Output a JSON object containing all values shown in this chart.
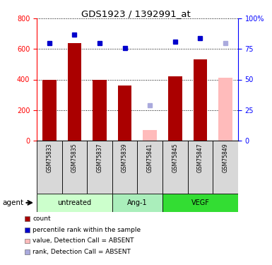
{
  "title": "GDS1923 / 1392991_at",
  "samples": [
    "GSM75833",
    "GSM75835",
    "GSM75837",
    "GSM75839",
    "GSM75841",
    "GSM75845",
    "GSM75847",
    "GSM75849"
  ],
  "count_values": [
    400,
    640,
    400,
    360,
    null,
    420,
    530,
    null
  ],
  "count_absent": [
    null,
    null,
    null,
    null,
    70,
    null,
    null,
    410
  ],
  "rank_values": [
    80,
    87,
    80,
    76,
    null,
    81,
    84,
    null
  ],
  "rank_absent": [
    null,
    null,
    null,
    null,
    29,
    null,
    null,
    80
  ],
  "groups": [
    {
      "label": "untreated",
      "start": 0,
      "end": 3,
      "color": "#ccffcc"
    },
    {
      "label": "Ang-1",
      "start": 3,
      "end": 5,
      "color": "#aaeebb"
    },
    {
      "label": "VEGF",
      "start": 5,
      "end": 8,
      "color": "#33dd33"
    }
  ],
  "ylim_left": [
    0,
    800
  ],
  "ylim_right": [
    0,
    100
  ],
  "yticks_left": [
    0,
    200,
    400,
    600,
    800
  ],
  "yticks_right": [
    0,
    25,
    50,
    75,
    100
  ],
  "ytick_labels_right": [
    "0",
    "25",
    "50",
    "75",
    "100%"
  ],
  "bar_color": "#aa0000",
  "bar_absent_color": "#ffbbbb",
  "rank_color": "#0000cc",
  "rank_absent_color": "#aaaadd",
  "legend_items": [
    {
      "label": "count",
      "color": "#aa0000"
    },
    {
      "label": "percentile rank within the sample",
      "color": "#0000cc"
    },
    {
      "label": "value, Detection Call = ABSENT",
      "color": "#ffbbbb"
    },
    {
      "label": "rank, Detection Call = ABSENT",
      "color": "#aaaadd"
    }
  ],
  "agent_label": "agent",
  "bar_width": 0.55
}
